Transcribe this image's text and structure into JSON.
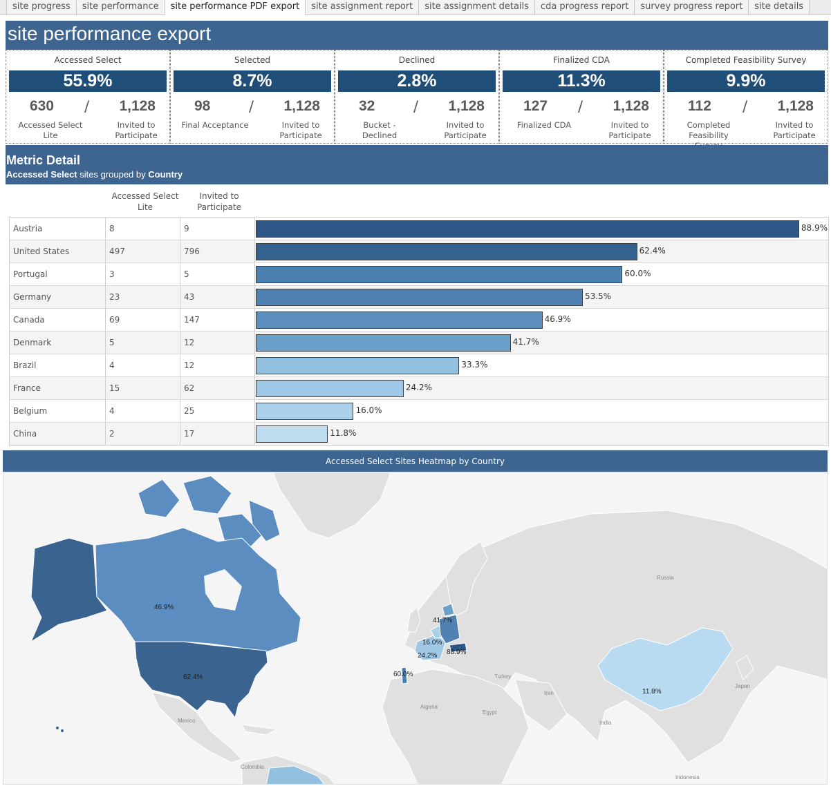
{
  "tabs": [
    {
      "label": "site progress",
      "active": false
    },
    {
      "label": "site performance",
      "active": false
    },
    {
      "label": "site performance PDF export",
      "active": true
    },
    {
      "label": "site assignment report",
      "active": false
    },
    {
      "label": "site assignment details",
      "active": false
    },
    {
      "label": "cda progress report",
      "active": false
    },
    {
      "label": "survey progress report",
      "active": false
    },
    {
      "label": "site details",
      "active": false
    }
  ],
  "header": {
    "title": "site performance export"
  },
  "kpis": [
    {
      "title": "Accessed Select",
      "pct": "55.9%",
      "num": "630",
      "den": "1,128",
      "num_label": "Accessed Select Lite",
      "den_label": "Invited to Participate"
    },
    {
      "title": "Selected",
      "pct": "8.7%",
      "num": "98",
      "den": "1,128",
      "num_label": "Final Acceptance",
      "den_label": "Invited to Participate"
    },
    {
      "title": "Declined",
      "pct": "2.8%",
      "num": "32",
      "den": "1,128",
      "num_label": "Bucket - Declined",
      "den_label": "Invited to Participate"
    },
    {
      "title": "Finalized CDA",
      "pct": "11.3%",
      "num": "127",
      "den": "1,128",
      "num_label": "Finalized CDA",
      "den_label": "Invited to Participate"
    },
    {
      "title": "Completed Feasibility Survey",
      "pct": "9.9%",
      "num": "112",
      "den": "1,128",
      "num_label": "Completed Feasibility Survey",
      "den_label": "Invited to Participate"
    }
  ],
  "kpi_slash": "/",
  "metric": {
    "title": "Metric Detail",
    "sub_bold1": "Accessed Select",
    "sub_mid": " sites grouped by ",
    "sub_bold2": "Country"
  },
  "table": {
    "col_lite": "Accessed Select Lite",
    "col_invited": "Invited to Participate"
  },
  "chart_data": {
    "type": "bar",
    "categories": [
      "Austria",
      "United States",
      "Portugal",
      "Germany",
      "Canada",
      "Denmark",
      "Brazil",
      "France",
      "Belgium",
      "China"
    ],
    "accessed_select_lite": [
      8,
      497,
      3,
      23,
      69,
      5,
      4,
      15,
      4,
      2
    ],
    "invited_to_participate": [
      9,
      796,
      5,
      43,
      147,
      12,
      12,
      62,
      25,
      17
    ],
    "values": [
      88.9,
      62.4,
      60.0,
      53.5,
      46.9,
      41.7,
      33.3,
      24.2,
      16.0,
      11.8
    ],
    "value_labels": [
      "88.9%",
      "62.4%",
      "60.0%",
      "53.5%",
      "46.9%",
      "41.7%",
      "33.3%",
      "24.2%",
      "16.0%",
      "11.8%"
    ],
    "bar_colors": [
      "#2c5786",
      "#33628f",
      "#4b7fb0",
      "#4f82b2",
      "#5b8ebd",
      "#6a9fca",
      "#94c0e0",
      "#9fc8e6",
      "#aad0ea",
      "#bedcf0"
    ],
    "xlim": [
      0,
      100
    ]
  },
  "map": {
    "title": "Accessed Select Sites Heatmap by Country",
    "labels": [
      "46.9%",
      "62.4%",
      "41.7%",
      "16.0%",
      "24.2%",
      "88.9%",
      "60.0%",
      "11.8%"
    ],
    "places": [
      "Russia",
      "Turkey",
      "Iran",
      "Algeria",
      "Egypt",
      "India",
      "Japan",
      "Mexico",
      "Colombia",
      "Indonesia"
    ],
    "colors": {
      "us": "#3a638f",
      "ca": "#5b8dc0",
      "cn": "#b9dbf2",
      "base": "#e0e0e0",
      "ocean": "#f5f5f5"
    }
  }
}
